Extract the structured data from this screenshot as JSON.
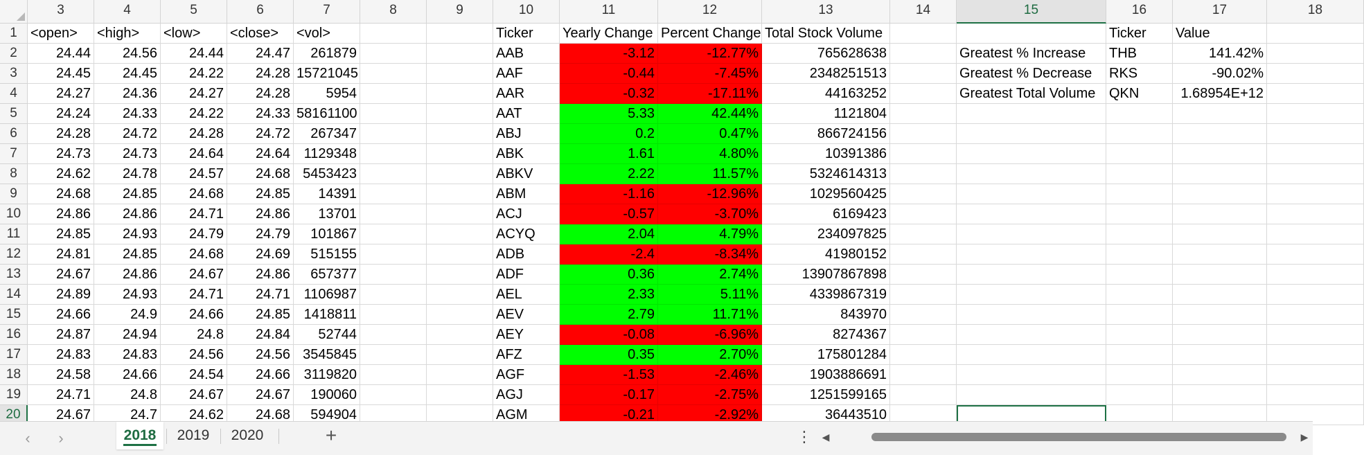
{
  "sheet": {
    "col_headers": [
      "3",
      "4",
      "5",
      "6",
      "7",
      "8",
      "9",
      "10",
      "11",
      "12",
      "13",
      "14",
      "15",
      "16",
      "17",
      "18"
    ],
    "row_headers": [
      "1",
      "2",
      "3",
      "4",
      "5",
      "6",
      "7",
      "8",
      "9",
      "10",
      "11",
      "12",
      "13",
      "14",
      "15",
      "16",
      "17",
      "18",
      "19",
      "20"
    ],
    "selected_col": "15",
    "selected_row": "20",
    "header_row": [
      "<open>",
      "<high>",
      "<low>",
      "<close>",
      "<vol>",
      "",
      "",
      "Ticker",
      "Yearly Change",
      "Percent Change",
      "Total Stock Volume",
      "",
      "",
      "Ticker",
      "Value",
      ""
    ],
    "price_rows": [
      [
        "24.44",
        "24.56",
        "24.44",
        "24.47",
        "261879"
      ],
      [
        "24.45",
        "24.45",
        "24.22",
        "24.28",
        "15721045"
      ],
      [
        "24.27",
        "24.36",
        "24.27",
        "24.28",
        "5954"
      ],
      [
        "24.24",
        "24.33",
        "24.22",
        "24.33",
        "58161100"
      ],
      [
        "24.28",
        "24.72",
        "24.28",
        "24.72",
        "267347"
      ],
      [
        "24.73",
        "24.73",
        "24.64",
        "24.64",
        "1129348"
      ],
      [
        "24.62",
        "24.78",
        "24.57",
        "24.68",
        "5453423"
      ],
      [
        "24.68",
        "24.85",
        "24.68",
        "24.85",
        "14391"
      ],
      [
        "24.86",
        "24.86",
        "24.71",
        "24.86",
        "13701"
      ],
      [
        "24.85",
        "24.93",
        "24.79",
        "24.79",
        "101867"
      ],
      [
        "24.81",
        "24.85",
        "24.68",
        "24.69",
        "515155"
      ],
      [
        "24.67",
        "24.86",
        "24.67",
        "24.86",
        "657377"
      ],
      [
        "24.89",
        "24.93",
        "24.71",
        "24.71",
        "1106987"
      ],
      [
        "24.66",
        "24.9",
        "24.66",
        "24.85",
        "1418811"
      ],
      [
        "24.87",
        "24.94",
        "24.8",
        "24.84",
        "52744"
      ],
      [
        "24.83",
        "24.83",
        "24.56",
        "24.56",
        "3545845"
      ],
      [
        "24.58",
        "24.66",
        "24.54",
        "24.66",
        "3119820"
      ],
      [
        "24.71",
        "24.8",
        "24.67",
        "24.67",
        "190060"
      ],
      [
        "24.67",
        "24.7",
        "24.62",
        "24.68",
        "594904"
      ]
    ],
    "summary_rows": [
      [
        "AAB",
        "-3.12",
        "-12.77%",
        "765628638"
      ],
      [
        "AAF",
        "-0.44",
        "-7.45%",
        "2348251513"
      ],
      [
        "AAR",
        "-0.32",
        "-17.11%",
        "44163252"
      ],
      [
        "AAT",
        "5.33",
        "42.44%",
        "1121804"
      ],
      [
        "ABJ",
        "0.2",
        "0.47%",
        "866724156"
      ],
      [
        "ABK",
        "1.61",
        "4.80%",
        "10391386"
      ],
      [
        "ABKV",
        "2.22",
        "11.57%",
        "5324614313"
      ],
      [
        "ABM",
        "-1.16",
        "-12.96%",
        "1029560425"
      ],
      [
        "ACJ",
        "-0.57",
        "-3.70%",
        "6169423"
      ],
      [
        "ACYQ",
        "2.04",
        "4.79%",
        "234097825"
      ],
      [
        "ADB",
        "-2.4",
        "-8.34%",
        "41980152"
      ],
      [
        "ADF",
        "0.36",
        "2.74%",
        "13907867898"
      ],
      [
        "AEL",
        "2.33",
        "5.11%",
        "4339867319"
      ],
      [
        "AEV",
        "2.79",
        "11.71%",
        "843970"
      ],
      [
        "AEY",
        "-0.08",
        "-6.96%",
        "8274367"
      ],
      [
        "AFZ",
        "0.35",
        "2.70%",
        "175801284"
      ],
      [
        "AGF",
        "-1.53",
        "-2.46%",
        "1903886691"
      ],
      [
        "AGJ",
        "-0.17",
        "-2.75%",
        "1251599165"
      ],
      [
        "AGM",
        "-0.21",
        "-2.92%",
        "36443510"
      ]
    ],
    "greatest": [
      [
        "Greatest % Increase",
        "THB",
        "141.42%"
      ],
      [
        "Greatest % Decrease",
        "RKS",
        "-90.02%"
      ],
      [
        "Greatest Total Volume",
        "QKN",
        "1.68954E+12"
      ]
    ]
  },
  "colors": {
    "positive_fill": "#00ff00",
    "negative_fill": "#ff0000",
    "accent": "#1e7145"
  },
  "tabs": {
    "prev_icon": "chevron-left-icon",
    "next_icon": "chevron-right-icon",
    "sheets": [
      "2018",
      "2019",
      "2020"
    ],
    "active": "2018",
    "add_icon": "plus-icon",
    "more_icon": "vertical-ellipsis-icon"
  }
}
